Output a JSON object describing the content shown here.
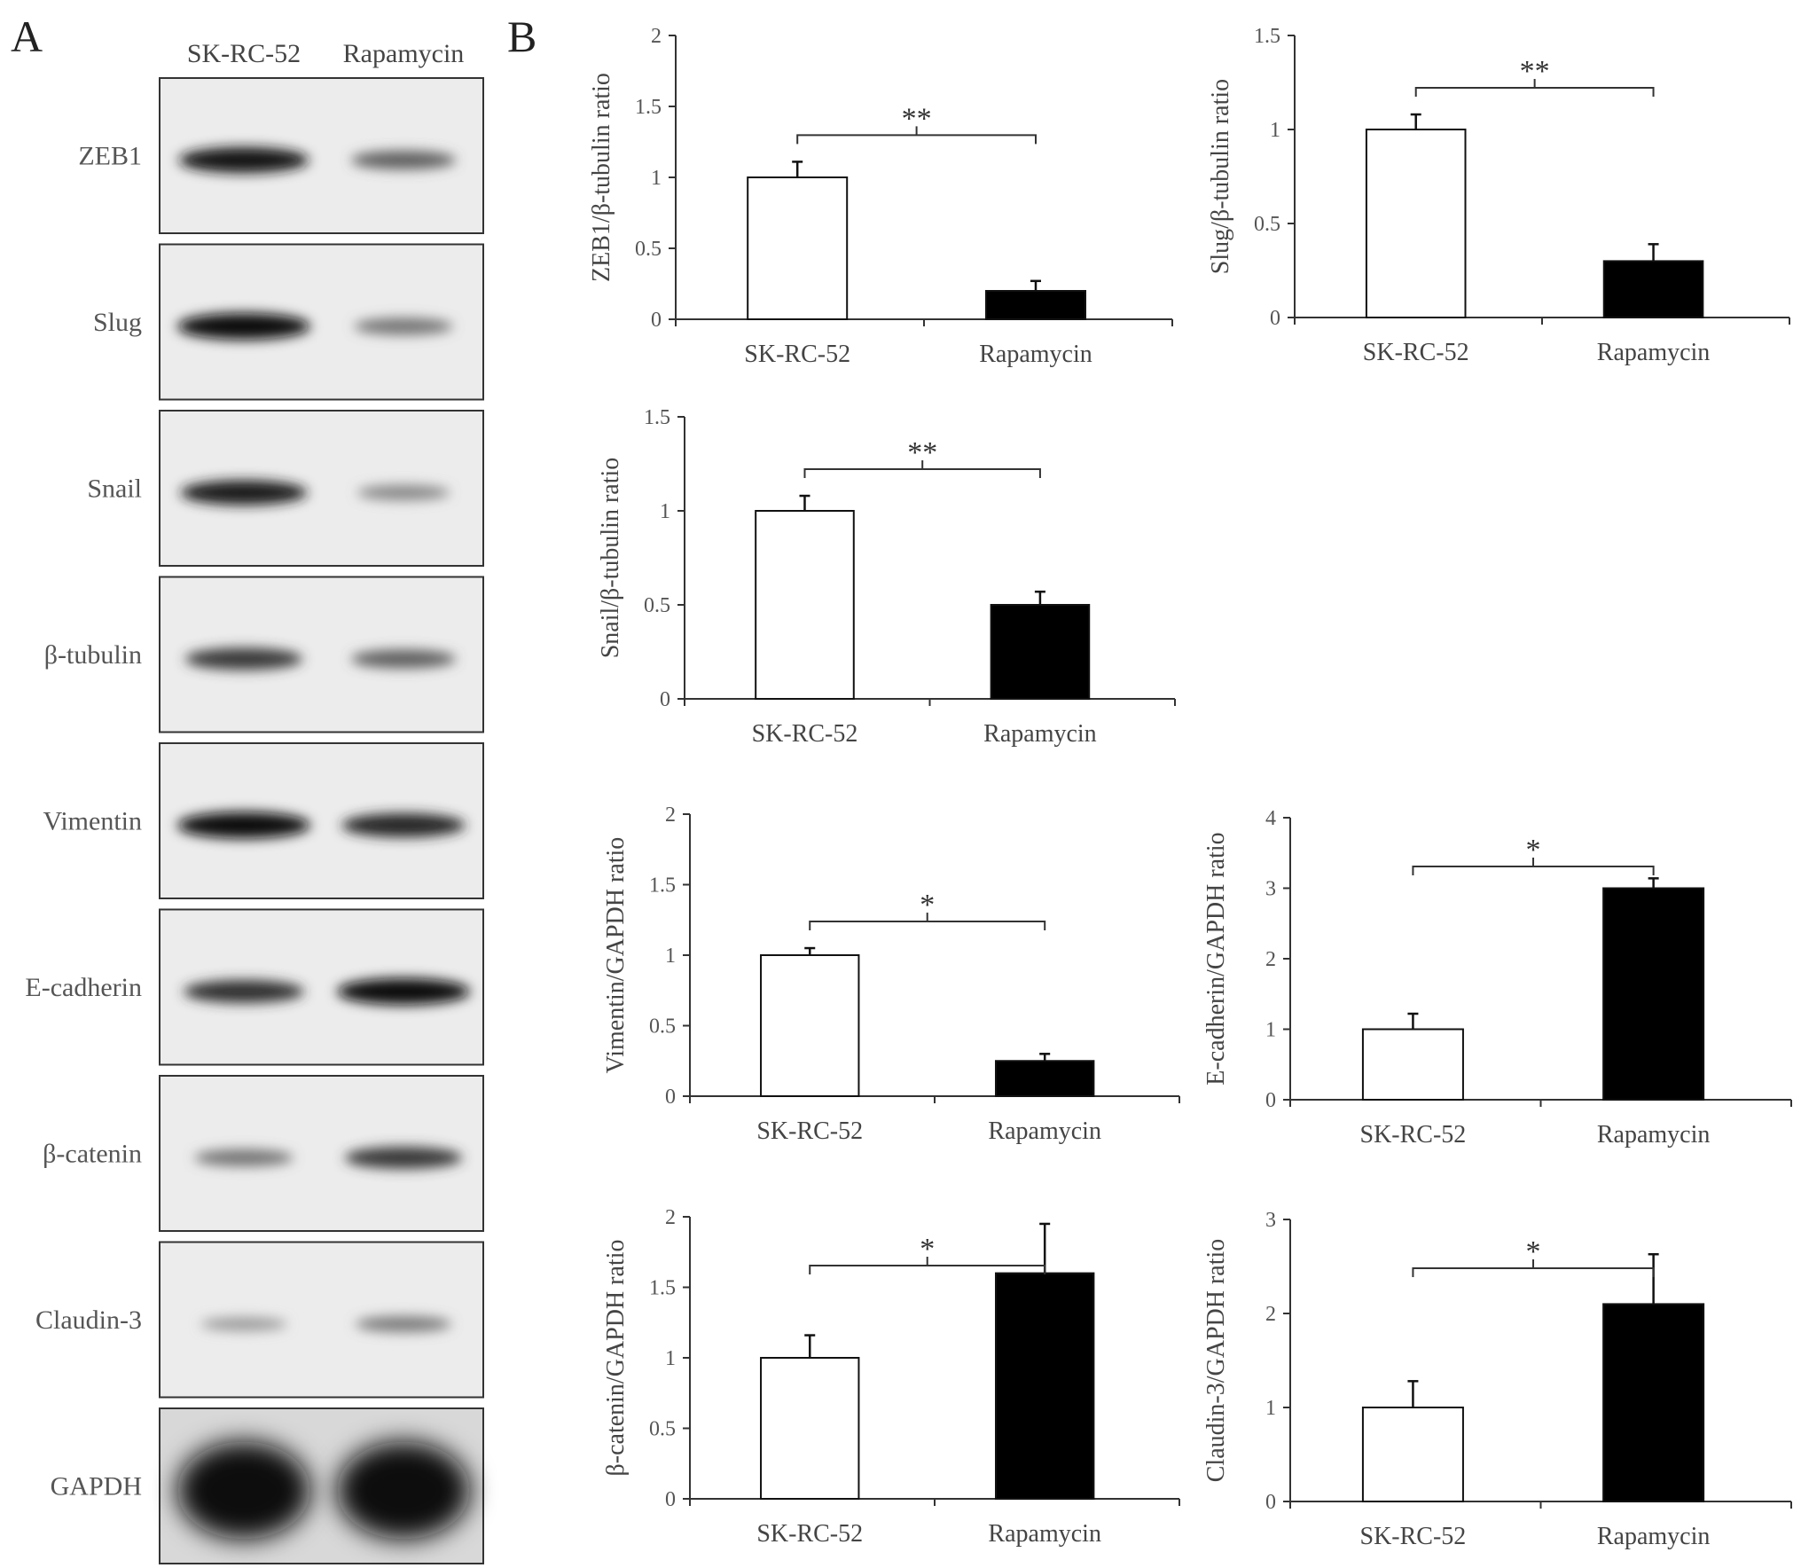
{
  "panels": {
    "a": "A",
    "b": "B"
  },
  "blot": {
    "lanes": [
      "SK-RC-52",
      "Rapamycin"
    ],
    "rows": [
      {
        "label": "ZEB1",
        "intensity": [
          0.95,
          0.55
        ]
      },
      {
        "label": "Slug",
        "intensity": [
          1.0,
          0.45
        ]
      },
      {
        "label": "Snail",
        "intensity": [
          0.9,
          0.35
        ]
      },
      {
        "label": "β-tubulin",
        "intensity": [
          0.75,
          0.55
        ]
      },
      {
        "label": "Vimentin",
        "intensity": [
          1.0,
          0.85
        ]
      },
      {
        "label": "E-cadherin",
        "intensity": [
          0.8,
          1.0
        ]
      },
      {
        "label": "β-catenin",
        "intensity": [
          0.45,
          0.75
        ]
      },
      {
        "label": "Claudin-3",
        "intensity": [
          0.25,
          0.4
        ]
      },
      {
        "label": "GAPDH",
        "intensity": [
          1.0,
          1.0
        ]
      }
    ]
  },
  "chart_data": [
    {
      "type": "bar",
      "categories": [
        "SK-RC-52",
        "Rapamycin"
      ],
      "values": [
        1.0,
        0.2
      ],
      "errors": [
        0.11,
        0.07
      ],
      "ylabel": "ZEB1/β-tubulin ratio",
      "ylim": [
        0,
        2
      ],
      "ticks": [
        {
          "v": 0,
          "t": "0"
        },
        {
          "v": 0.5,
          "t": "0.5"
        },
        {
          "v": 1,
          "t": "1"
        },
        {
          "v": 1.5,
          "t": "1.5"
        },
        {
          "v": 2,
          "t": "2"
        }
      ],
      "significance": "**",
      "bar_colors": [
        "#ffffff",
        "#000000"
      ]
    },
    {
      "type": "bar",
      "categories": [
        "SK-RC-52",
        "Rapamycin"
      ],
      "values": [
        1.0,
        0.3
      ],
      "errors": [
        0.08,
        0.09
      ],
      "ylabel": "Slug/β-tubulin ratio",
      "ylim": [
        0,
        1.5
      ],
      "ticks": [
        {
          "v": 0,
          "t": "0"
        },
        {
          "v": 0.5,
          "t": "0.5"
        },
        {
          "v": 1,
          "t": "1"
        },
        {
          "v": 1.5,
          "t": "1.5"
        }
      ],
      "significance": "**",
      "bar_colors": [
        "#ffffff",
        "#000000"
      ]
    },
    {
      "type": "bar",
      "categories": [
        "SK-RC-52",
        "Rapamycin"
      ],
      "values": [
        1.0,
        0.5
      ],
      "errors": [
        0.08,
        0.07
      ],
      "ylabel": "Snail/β-tubulin ratio",
      "ylim": [
        0,
        1.5
      ],
      "ticks": [
        {
          "v": 0,
          "t": "0"
        },
        {
          "v": 0.5,
          "t": "0.5"
        },
        {
          "v": 1,
          "t": "1"
        },
        {
          "v": 1.5,
          "t": "1.5"
        }
      ],
      "significance": "**",
      "bar_colors": [
        "#ffffff",
        "#000000"
      ]
    },
    {
      "type": "bar",
      "categories": [
        "SK-RC-52",
        "Rapamycin"
      ],
      "values": [
        1.0,
        0.25
      ],
      "errors": [
        0.05,
        0.05
      ],
      "ylabel": "Vimentin/GAPDH ratio",
      "ylim": [
        0,
        2
      ],
      "ticks": [
        {
          "v": 0,
          "t": "0"
        },
        {
          "v": 0.5,
          "t": "0.5"
        },
        {
          "v": 1,
          "t": "1"
        },
        {
          "v": 1.5,
          "t": "1.5"
        },
        {
          "v": 2,
          "t": "2"
        }
      ],
      "significance": "*",
      "bar_colors": [
        "#ffffff",
        "#000000"
      ]
    },
    {
      "type": "bar",
      "categories": [
        "SK-RC-52",
        "Rapamycin"
      ],
      "values": [
        1.0,
        3.0
      ],
      "errors": [
        0.22,
        0.14
      ],
      "ylabel": "E-cadherin/GAPDH ratio",
      "ylim": [
        0,
        4
      ],
      "ticks": [
        {
          "v": 0,
          "t": "0"
        },
        {
          "v": 1,
          "t": "1"
        },
        {
          "v": 2,
          "t": "2"
        },
        {
          "v": 3,
          "t": "3"
        },
        {
          "v": 4,
          "t": "4"
        }
      ],
      "significance": "*",
      "bar_colors": [
        "#ffffff",
        "#000000"
      ]
    },
    {
      "type": "bar",
      "categories": [
        "SK-RC-52",
        "Rapamycin"
      ],
      "values": [
        1.0,
        1.6
      ],
      "errors": [
        0.16,
        0.35
      ],
      "ylabel": "β-catenin/GAPDH ratio",
      "ylim": [
        0,
        2
      ],
      "ticks": [
        {
          "v": 0,
          "t": "0"
        },
        {
          "v": 0.5,
          "t": "0.5"
        },
        {
          "v": 1,
          "t": "1"
        },
        {
          "v": 1.5,
          "t": "1.5"
        },
        {
          "v": 2,
          "t": "2"
        }
      ],
      "significance": "*",
      "bar_colors": [
        "#ffffff",
        "#000000"
      ]
    },
    {
      "type": "bar",
      "categories": [
        "SK-RC-52",
        "Rapamycin"
      ],
      "values": [
        1.0,
        2.1
      ],
      "errors": [
        0.28,
        0.53
      ],
      "ylabel": "Claudin-3/GAPDH ratio",
      "ylim": [
        0,
        3
      ],
      "ticks": [
        {
          "v": 0,
          "t": "0"
        },
        {
          "v": 1,
          "t": "1"
        },
        {
          "v": 2,
          "t": "2"
        },
        {
          "v": 3,
          "t": "3"
        }
      ],
      "significance": "*",
      "bar_colors": [
        "#ffffff",
        "#000000"
      ]
    }
  ]
}
